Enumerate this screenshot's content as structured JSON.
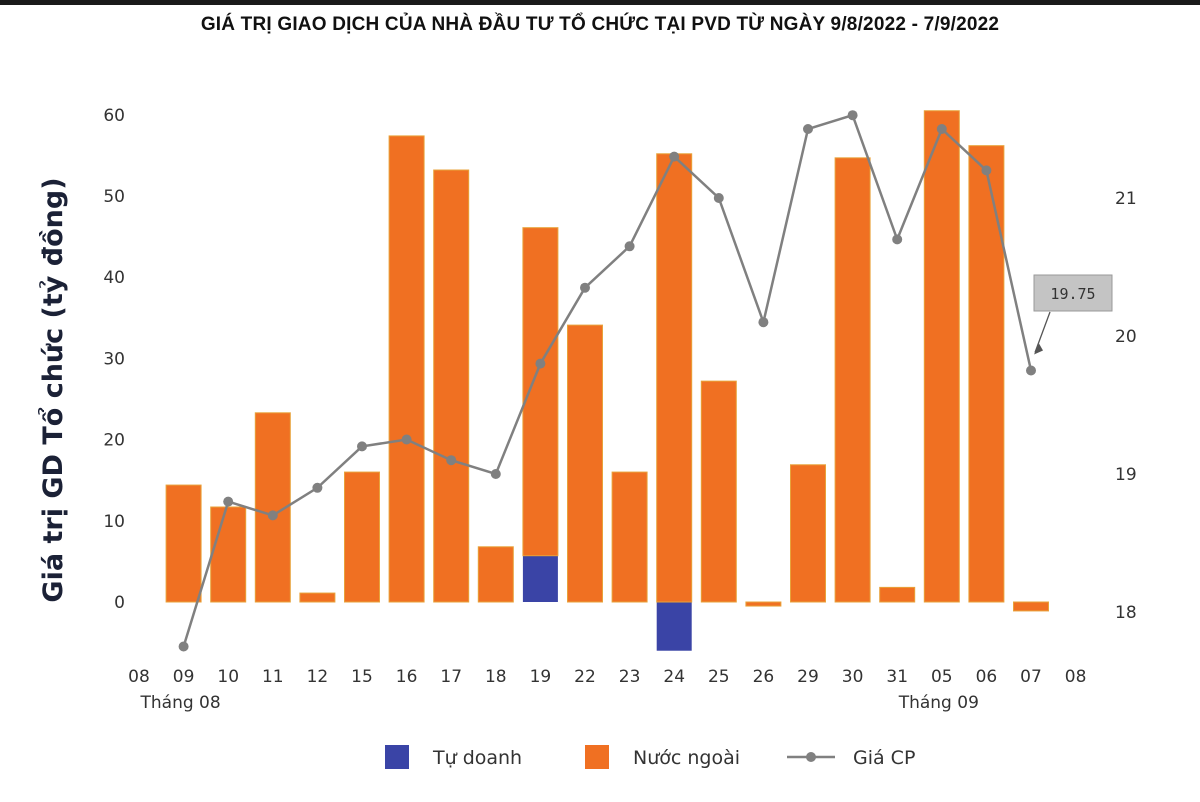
{
  "chart_data": {
    "type": "bar",
    "title": "GIÁ TRỊ GIAO DỊCH CỦA NHÀ ĐẦU TƯ TỔ CHỨC TẠI PVD TỪ NGÀY 9/8/2022 - 7/9/2022",
    "ylabel": "Giá trị GD Tổ chức (tỷ đồng)",
    "y2label": "",
    "xlabel": "",
    "axis_ticks": [
      "08",
      "09",
      "10",
      "11",
      "12",
      "15",
      "16",
      "17",
      "18",
      "19",
      "22",
      "23",
      "24",
      "25",
      "26",
      "29",
      "30",
      "31",
      "05",
      "06",
      "07",
      "08"
    ],
    "month_labels": [
      {
        "label": "Tháng 08",
        "at": "09"
      },
      {
        "label": "Tháng 09",
        "at": "05"
      }
    ],
    "categories": [
      "09",
      "10",
      "11",
      "12",
      "15",
      "16",
      "17",
      "18",
      "19",
      "22",
      "23",
      "24",
      "25",
      "26",
      "29",
      "30",
      "31",
      "05",
      "06",
      "07"
    ],
    "ylim": [
      -7,
      62
    ],
    "yticks": [
      0,
      10,
      20,
      30,
      40,
      50,
      60
    ],
    "y2lim": [
      17.7,
      21.7
    ],
    "y2ticks": [
      18,
      19,
      20,
      21
    ],
    "stacked": true,
    "grid": false,
    "legend_position": "bottom",
    "series": [
      {
        "name": "Tự doanh",
        "type": "bar",
        "color": "#3a44a6",
        "values": [
          0,
          0,
          0,
          0,
          0,
          0,
          0,
          0,
          5.7,
          0,
          0,
          -6.0,
          0,
          0,
          0,
          0,
          0,
          0,
          0,
          0
        ]
      },
      {
        "name": "Nước ngoài",
        "type": "bar",
        "color": "#f07022",
        "values": [
          14.4,
          11.7,
          23.3,
          1.1,
          16.0,
          57.4,
          53.2,
          6.8,
          40.4,
          34.1,
          16.0,
          55.2,
          27.2,
          -0.5,
          16.9,
          54.7,
          1.8,
          60.5,
          56.2,
          -1.1
        ]
      },
      {
        "name": "Giá CP",
        "type": "line",
        "axis": "right",
        "color": "#808080",
        "values": [
          17.75,
          18.8,
          18.7,
          18.9,
          19.2,
          19.25,
          19.1,
          19.0,
          19.8,
          20.35,
          20.65,
          21.3,
          21.0,
          20.1,
          21.5,
          21.6,
          20.7,
          21.5,
          21.2,
          19.75
        ]
      }
    ],
    "annotation": {
      "text": "19.75",
      "at": "07"
    }
  }
}
